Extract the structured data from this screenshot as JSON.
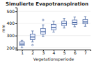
{
  "chart_data": {
    "type": "box",
    "title": "Simulierte Evapotranspiration",
    "xlabel": "Vegetationsperiode",
    "ylabel": "mm",
    "x": [
      1,
      2,
      3,
      4,
      5,
      6,
      7
    ],
    "boxes": [
      {
        "med": 230,
        "q1": 218,
        "q3": 248,
        "whislo": 200,
        "whishi": 262,
        "fliers": []
      },
      {
        "med": 288,
        "q1": 268,
        "q3": 312,
        "whislo": 248,
        "whishi": 338,
        "fliers": [
          222
        ]
      },
      {
        "med": 332,
        "q1": 312,
        "q3": 358,
        "whislo": 292,
        "whishi": 388,
        "fliers": [
          428
        ]
      },
      {
        "med": 368,
        "q1": 348,
        "q3": 392,
        "whislo": 328,
        "whishi": 418,
        "fliers": []
      },
      {
        "med": 398,
        "q1": 382,
        "q3": 418,
        "whislo": 362,
        "whishi": 442,
        "fliers": []
      },
      {
        "med": 408,
        "q1": 392,
        "q3": 428,
        "whislo": 372,
        "whishi": 452,
        "fliers": []
      },
      {
        "med": 412,
        "q1": 396,
        "q3": 432,
        "whislo": 376,
        "whishi": 456,
        "fliers": []
      }
    ],
    "xlim": [
      0.5,
      7.5
    ],
    "xticks": [
      1,
      2,
      3,
      4,
      5,
      6,
      7
    ],
    "ylim": [
      185,
      530
    ],
    "yticks": [
      200,
      300,
      400,
      500
    ],
    "color": "#3a5a9a",
    "grid": true
  }
}
